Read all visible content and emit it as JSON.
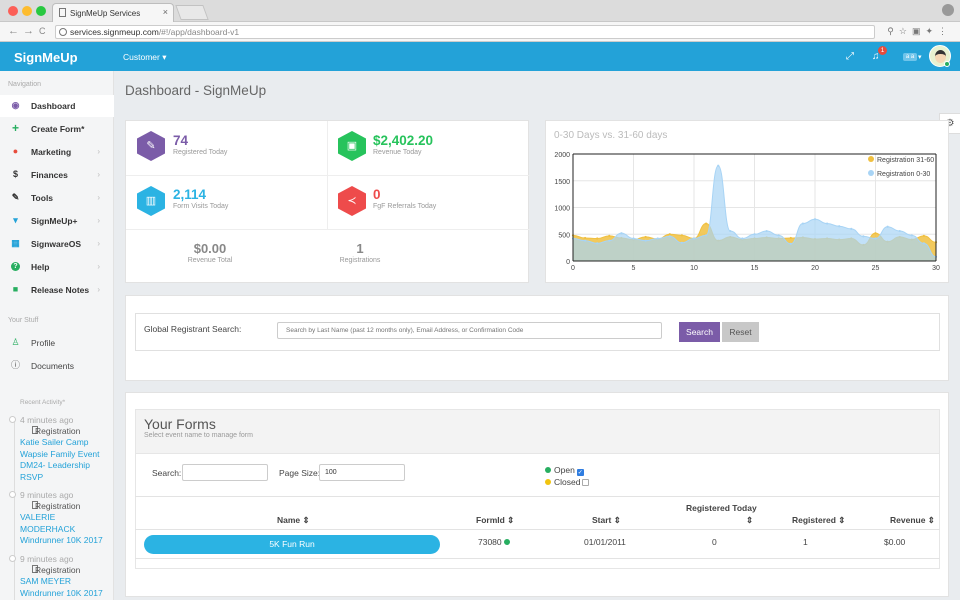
{
  "browser": {
    "tab_title": "SignMeUp Services",
    "tab_close": "×",
    "url_host": "services.signmeup.com",
    "url_path": "/#!/app/dashboard-v1",
    "nav_back": "←",
    "nav_forward": "→",
    "nav_reload": "C"
  },
  "header": {
    "brand": "SignMeUp",
    "customer_menu": "Customer ▾",
    "notification_count": "1",
    "language": "a a",
    "language_chevron": "▾"
  },
  "sidebar": {
    "navigation_label": "Navigation",
    "items": [
      {
        "label": "Dashboard",
        "icon": "dashboard-icon",
        "glyph": "◉",
        "color": "#7b5ca8"
      },
      {
        "label": "Create Form*",
        "icon": "plus-icon",
        "glyph": "+",
        "color": "#27ae60"
      },
      {
        "label": "Marketing",
        "icon": "marketing-icon",
        "glyph": "●",
        "color": "#e74c3c"
      },
      {
        "label": "Finances",
        "icon": "dollar-icon",
        "glyph": "$",
        "color": "#333333"
      },
      {
        "label": "Tools",
        "icon": "wrench-icon",
        "glyph": "✎",
        "color": "#333333"
      },
      {
        "label": "SignMeUp+",
        "icon": "cart-icon",
        "glyph": "▾",
        "color": "#23a2d8"
      },
      {
        "label": "SignwareOS",
        "icon": "grid-icon",
        "glyph": "▦",
        "color": "#23a2d8"
      },
      {
        "label": "Help",
        "icon": "help-icon",
        "glyph": "?",
        "color": "#27ae60"
      },
      {
        "label": "Release Notes",
        "icon": "comment-icon",
        "glyph": "■",
        "color": "#27ae60"
      }
    ],
    "your_stuff_label": "Your Stuff",
    "stuff_items": [
      {
        "label": "Profile",
        "icon": "user-icon",
        "glyph": "♙"
      },
      {
        "label": "Documents",
        "icon": "info-icon",
        "glyph": "ⓘ"
      }
    ],
    "recent_activity_label": "Recent Activity*",
    "activity": [
      {
        "time": "4 minutes ago",
        "type": "Registration",
        "links": [
          "Katie Sailer Camp",
          "Wapsie Family Event",
          "DM24- Leadership",
          "RSVP"
        ]
      },
      {
        "time": "9 minutes ago",
        "type": "Registration",
        "links": [
          "VALERIE",
          "MODERHACK",
          "Windrunner 10K 2017"
        ]
      },
      {
        "time": "9 minutes ago",
        "type": "Registration",
        "links": [
          "SAM MEYER",
          "Windrunner 10K 2017"
        ]
      }
    ]
  },
  "page": {
    "title": "Dashboard - SignMeUp"
  },
  "stats": {
    "registered_today": {
      "value": "74",
      "label": "Registered Today",
      "color": "#7b5ca8"
    },
    "revenue_today": {
      "value": "$2,402.20",
      "label": "Revenue Today",
      "color": "#27c35c"
    },
    "form_visits_today": {
      "value": "2,114",
      "label": "Form Visits Today",
      "color": "#2bb3e3"
    },
    "fgf_referrals_today": {
      "value": "0",
      "label": "FgF Referrals Today",
      "color": "#ee4b4b"
    },
    "revenue_total": {
      "value": "$0.00",
      "label": "Revenue Total"
    },
    "registrations": {
      "value": "1",
      "label": "Registrations"
    }
  },
  "chart_data": {
    "type": "area",
    "title": "0-30 Days vs. 31-60 days",
    "xlim": [
      0,
      30
    ],
    "ylim": [
      0,
      2000
    ],
    "x_ticks": [
      "0",
      "5",
      "10",
      "15",
      "20",
      "25",
      "30"
    ],
    "y_ticks": [
      "0",
      "500",
      "1000",
      "1500",
      "2000"
    ],
    "legend_position": "top-right",
    "grid": true,
    "x": [
      0,
      1,
      2,
      3,
      4,
      5,
      6,
      7,
      8,
      9,
      10,
      11,
      12,
      13,
      14,
      15,
      16,
      17,
      18,
      19,
      20,
      21,
      22,
      23,
      24,
      25,
      26,
      27,
      28,
      29,
      30
    ],
    "series": [
      {
        "name": "Registration 31-60",
        "color": "#f0c040",
        "values": [
          480,
          430,
          420,
          470,
          430,
          400,
          450,
          410,
          500,
          480,
          420,
          700,
          380,
          450,
          400,
          420,
          440,
          420,
          430,
          440,
          410,
          420,
          400,
          420,
          300,
          520,
          360,
          450,
          400,
          470,
          350
        ]
      },
      {
        "name": "Registration 0-30",
        "color": "#a8d4f5",
        "values": [
          420,
          380,
          330,
          380,
          520,
          420,
          380,
          420,
          460,
          340,
          420,
          480,
          1780,
          560,
          420,
          500,
          560,
          480,
          320,
          700,
          780,
          700,
          650,
          600,
          460,
          420,
          640,
          560,
          480,
          330,
          80
        ]
      }
    ]
  },
  "search": {
    "label": "Global Registrant Search:",
    "placeholder": "Search by Last Name (past 12 months only), Email Address, or Confirmation Code",
    "search_button": "Search",
    "reset_button": "Reset"
  },
  "forms": {
    "title": "Your Forms",
    "subtitle": "Select event name to manage form",
    "search_label": "Search:",
    "search_value": "",
    "page_size_label": "Page Size:",
    "page_size_value": "100",
    "open_label": "Open",
    "closed_label": "Closed",
    "open_color": "#27ae60",
    "closed_color": "#f1c40f",
    "columns": {
      "name": "Name ⇕",
      "formid": "FormId ⇕",
      "start": "Start ⇕",
      "registered_today_line1": "Registered Today",
      "registered_today_line2": "⇕",
      "registered": "Registered ⇕",
      "revenue": "Revenue ⇕"
    },
    "rows": [
      {
        "name": "5K Fun Run",
        "formid": "73080",
        "start": "01/01/2011",
        "registered_today": "0",
        "registered": "1",
        "revenue": "$0.00"
      }
    ]
  }
}
